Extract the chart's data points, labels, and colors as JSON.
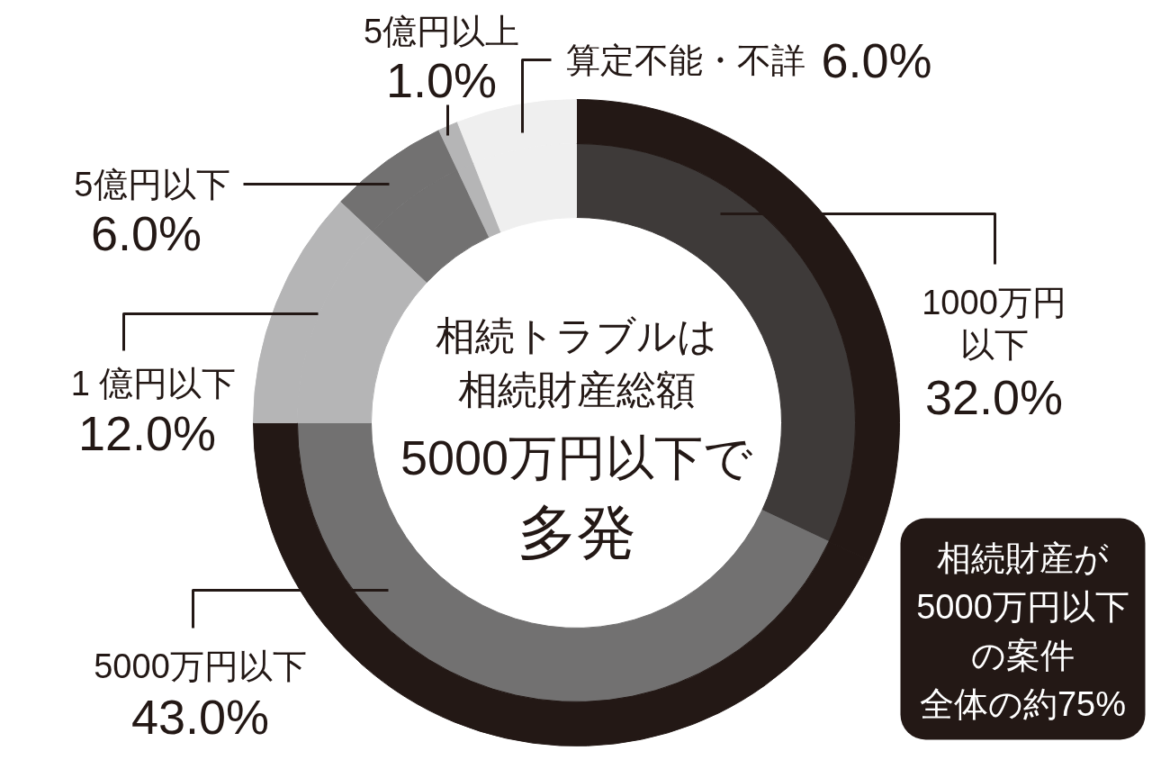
{
  "chart_data": {
    "type": "donut",
    "title": "相続トラブルは相続財産総額",
    "subtitle": "5000万円以下で多発",
    "categories": [
      "1000万円以下",
      "5000万円以下",
      "1 億円以下",
      "5億円以下",
      "5億円以上",
      "算定不能・不詳"
    ],
    "series": [
      {
        "values": [
          32.0,
          43.0,
          12.0,
          6.0,
          1.0,
          6.0
        ],
        "colors": [
          "#3e3a39",
          "#727171",
          "#b5b5b6",
          "#727171",
          "#b5b5b6",
          "#efefef"
        ],
        "value_labels": [
          "32.0%",
          "43.0%",
          "12.0%",
          "6.0%",
          "1.0%",
          "6.0%"
        ]
      },
      {
        "values": [
          32.0,
          43.0,
          12.0,
          6.0,
          1.0,
          6.0
        ],
        "colors": [
          "#231815",
          "#231815",
          "#b5b5b6",
          "#727171",
          "#b5b5b6",
          "#efefef"
        ]
      }
    ],
    "annotations": [
      "相続財産が",
      "5000万円以下",
      "の案件",
      "全体の約75%"
    ]
  }
}
